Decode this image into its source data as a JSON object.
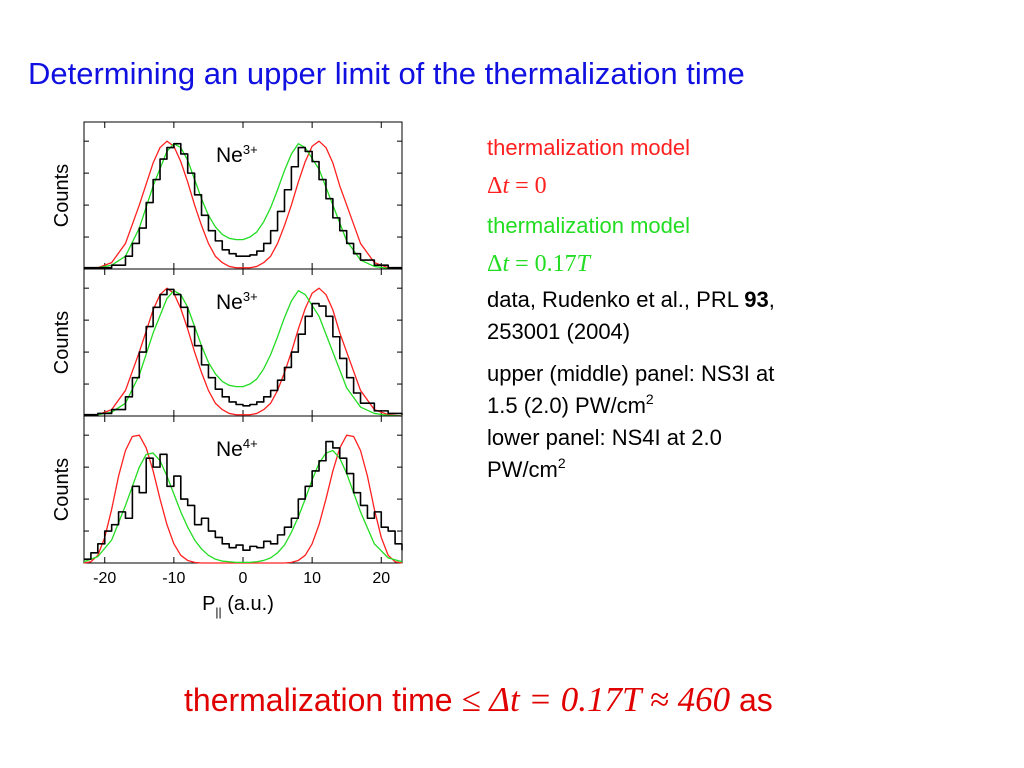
{
  "slide": {
    "title": "Determining an upper limit of the thermalization time"
  },
  "colors": {
    "title": "#1010e0",
    "model_dt0": "#ff2020",
    "model_dt017": "#22dd22",
    "data": "#000000"
  },
  "legend": {
    "model_dt0_label": "thermalization model",
    "model_dt0_math_symbol": "Δ",
    "model_dt0_math_var": "t",
    "model_dt0_math_rest": " = 0",
    "model_dt017_label": "thermalization model",
    "model_dt017_math_symbol": "Δ",
    "model_dt017_math_var": "t",
    "model_dt017_math_rest": " = 0.17",
    "model_dt017_math_T": "T",
    "data_line1_pre": "data, Rudenko et al., PRL ",
    "data_line1_bold": "93",
    "data_line1_post": ",",
    "data_line2": "253001 (2004)",
    "panels_upper_line1": "upper (middle) panel:  NS3I at",
    "panels_upper_line2": "1.5 (2.0) PW/cm",
    "panels_upper_sup": "2",
    "panels_lower_line1": "lower panel:   NS4I at 2.0",
    "panels_lower_line2": "PW/cm",
    "panels_lower_sup": "2"
  },
  "conclusion": {
    "text_pre": "thermalization time ",
    "math": "≤ Δt = 0.17T ≈ 460",
    "text_post": " as"
  },
  "chart_data": {
    "type": "line",
    "xlabel_main": "P",
    "xlabel_sub": "||",
    "xlabel_unit": " (a.u.)",
    "ylabel": "Counts",
    "xlim": [
      -23,
      23
    ],
    "ylim": [
      0,
      1.15
    ],
    "xticks": [
      -20,
      -10,
      0,
      10,
      20
    ],
    "xtick_labels": [
      "-20",
      "-10",
      "0",
      "10",
      "20"
    ],
    "panels": [
      {
        "ion": "Ne",
        "charge": "3+",
        "series": [
          {
            "color": "#ff2020",
            "x": [
              -23,
              -21,
              -19,
              -17,
              -15,
              -13,
              -12,
              -11,
              -10,
              -9,
              -8,
              -7,
              -6,
              -5,
              -4,
              -3,
              -2,
              -1,
              0,
              1,
              2,
              3,
              4,
              5,
              6,
              7,
              8,
              9,
              10,
              11,
              12,
              13,
              14,
              15,
              17,
              19,
              21,
              23
            ],
            "y": [
              0,
              0.01,
              0.05,
              0.2,
              0.5,
              0.83,
              0.95,
              1.0,
              0.96,
              0.84,
              0.68,
              0.5,
              0.34,
              0.2,
              0.1,
              0.05,
              0.02,
              0.01,
              0.01,
              0.01,
              0.02,
              0.05,
              0.1,
              0.2,
              0.34,
              0.5,
              0.68,
              0.84,
              0.96,
              1.0,
              0.95,
              0.83,
              0.65,
              0.5,
              0.2,
              0.05,
              0.01,
              0
            ]
          },
          {
            "color": "#22dd22",
            "x": [
              -23,
              -21,
              -19,
              -17,
              -15,
              -13,
              -11,
              -10,
              -9,
              -8,
              -7,
              -6,
              -5,
              -4,
              -3,
              -2,
              -1,
              0,
              1,
              2,
              3,
              4,
              5,
              6,
              7,
              8,
              9,
              11,
              13,
              15,
              17,
              19,
              21,
              23
            ],
            "y": [
              0,
              0.01,
              0.03,
              0.1,
              0.32,
              0.65,
              0.92,
              0.98,
              0.95,
              0.85,
              0.7,
              0.55,
              0.42,
              0.33,
              0.27,
              0.24,
              0.23,
              0.23,
              0.25,
              0.29,
              0.37,
              0.48,
              0.62,
              0.77,
              0.9,
              0.98,
              0.95,
              0.78,
              0.5,
              0.22,
              0.07,
              0.02,
              0.005,
              0
            ]
          },
          {
            "color": "#000000",
            "step": true,
            "x": [
              -23,
              -21,
              -19,
              -17,
              -16,
              -15,
              -14,
              -13,
              -12,
              -11,
              -10,
              -9,
              -8,
              -7,
              -6,
              -5,
              -4,
              -3,
              -2,
              -1,
              0,
              1,
              2,
              3,
              4,
              5,
              6,
              7,
              8,
              9,
              10,
              11,
              12,
              13,
              14,
              15,
              16,
              17,
              19,
              21,
              23
            ],
            "y": [
              0.01,
              0.01,
              0.03,
              0.1,
              0.2,
              0.32,
              0.52,
              0.7,
              0.86,
              0.95,
              0.98,
              0.9,
              0.75,
              0.58,
              0.42,
              0.3,
              0.22,
              0.15,
              0.12,
              0.1,
              0.1,
              0.11,
              0.14,
              0.2,
              0.3,
              0.45,
              0.62,
              0.8,
              0.95,
              0.92,
              0.84,
              0.7,
              0.55,
              0.4,
              0.3,
              0.2,
              0.12,
              0.07,
              0.03,
              0.01,
              0.01
            ]
          }
        ]
      },
      {
        "ion": "Ne",
        "charge": "3+",
        "series": [
          {
            "color": "#ff2020",
            "x": [
              -23,
              -21,
              -19,
              -17,
              -15,
              -13,
              -12,
              -11,
              -10,
              -9,
              -8,
              -7,
              -6,
              -5,
              -4,
              -3,
              -2,
              -1,
              0,
              1,
              2,
              3,
              4,
              5,
              6,
              7,
              8,
              9,
              10,
              11,
              12,
              13,
              14,
              15,
              17,
              19,
              21,
              23
            ],
            "y": [
              0,
              0.01,
              0.05,
              0.2,
              0.5,
              0.83,
              0.95,
              1.0,
              0.96,
              0.84,
              0.68,
              0.5,
              0.34,
              0.2,
              0.1,
              0.05,
              0.02,
              0.01,
              0.01,
              0.01,
              0.02,
              0.05,
              0.1,
              0.2,
              0.34,
              0.5,
              0.68,
              0.84,
              0.96,
              1.0,
              0.95,
              0.83,
              0.65,
              0.5,
              0.2,
              0.05,
              0.01,
              0
            ]
          },
          {
            "color": "#22dd22",
            "x": [
              -23,
              -21,
              -19,
              -17,
              -15,
              -13,
              -11,
              -10,
              -9,
              -8,
              -7,
              -6,
              -5,
              -4,
              -3,
              -2,
              -1,
              0,
              1,
              2,
              3,
              4,
              5,
              6,
              7,
              8,
              9,
              11,
              13,
              15,
              17,
              19,
              21,
              23
            ],
            "y": [
              0,
              0.01,
              0.03,
              0.1,
              0.32,
              0.65,
              0.92,
              0.98,
              0.95,
              0.85,
              0.7,
              0.55,
              0.42,
              0.33,
              0.27,
              0.24,
              0.23,
              0.23,
              0.25,
              0.29,
              0.37,
              0.48,
              0.62,
              0.77,
              0.9,
              0.98,
              0.95,
              0.78,
              0.5,
              0.22,
              0.07,
              0.02,
              0.005,
              0
            ]
          },
          {
            "color": "#000000",
            "step": true,
            "x": [
              -23,
              -21,
              -19,
              -17,
              -16,
              -15,
              -14,
              -13,
              -12,
              -11,
              -10,
              -9,
              -8,
              -7,
              -6,
              -5,
              -4,
              -3,
              -2,
              -1,
              0,
              1,
              2,
              3,
              4,
              5,
              6,
              7,
              8,
              9,
              10,
              11,
              12,
              13,
              14,
              15,
              16,
              17,
              19,
              21,
              23
            ],
            "y": [
              0.01,
              0.02,
              0.05,
              0.15,
              0.3,
              0.5,
              0.7,
              0.85,
              0.95,
              0.99,
              0.95,
              0.85,
              0.7,
              0.55,
              0.4,
              0.3,
              0.21,
              0.15,
              0.11,
              0.09,
              0.08,
              0.09,
              0.11,
              0.15,
              0.2,
              0.28,
              0.38,
              0.5,
              0.64,
              0.78,
              0.88,
              0.86,
              0.78,
              0.62,
              0.45,
              0.3,
              0.18,
              0.1,
              0.04,
              0.02,
              0.01
            ]
          }
        ]
      },
      {
        "ion": "Ne",
        "charge": "4+",
        "series": [
          {
            "color": "#ff2020",
            "x": [
              -23,
              -22,
              -21,
              -20,
              -19,
              -18,
              -17,
              -16,
              -15,
              -14,
              -13,
              -12,
              -11,
              -10,
              -9,
              -8,
              -7,
              -6,
              -5,
              -4,
              -3,
              0,
              3,
              4,
              5,
              6,
              7,
              8,
              9,
              10,
              11,
              12,
              13,
              14,
              15,
              16,
              17,
              18,
              19,
              20,
              21,
              22,
              23
            ],
            "y": [
              0,
              0.01,
              0.06,
              0.2,
              0.42,
              0.68,
              0.88,
              0.99,
              1.0,
              0.9,
              0.72,
              0.5,
              0.3,
              0.15,
              0.06,
              0.02,
              0.005,
              0,
              0,
              0,
              0,
              0,
              0,
              0,
              0,
              0,
              0.005,
              0.02,
              0.06,
              0.15,
              0.3,
              0.5,
              0.72,
              0.9,
              1.0,
              0.99,
              0.88,
              0.68,
              0.42,
              0.2,
              0.06,
              0.01,
              0
            ]
          },
          {
            "color": "#22dd22",
            "x": [
              -23,
              -21,
              -19,
              -17,
              -15,
              -14,
              -13,
              -12,
              -11,
              -10,
              -9,
              -8,
              -7,
              -6,
              -5,
              -4,
              -3,
              -2,
              -1,
              0,
              1,
              2,
              3,
              4,
              5,
              6,
              7,
              8,
              9,
              10,
              11,
              12,
              13,
              14,
              15,
              16,
              17,
              19,
              21,
              23
            ],
            "y": [
              0.01,
              0.05,
              0.18,
              0.45,
              0.75,
              0.85,
              0.86,
              0.8,
              0.68,
              0.54,
              0.4,
              0.28,
              0.18,
              0.11,
              0.06,
              0.03,
              0.015,
              0.01,
              0.005,
              0.005,
              0.005,
              0.01,
              0.02,
              0.04,
              0.08,
              0.14,
              0.24,
              0.36,
              0.5,
              0.65,
              0.78,
              0.86,
              0.88,
              0.82,
              0.7,
              0.55,
              0.4,
              0.15,
              0.04,
              0.01
            ]
          },
          {
            "color": "#000000",
            "step": true,
            "x": [
              -23,
              -22,
              -21,
              -20,
              -19,
              -18,
              -17,
              -16,
              -15,
              -14,
              -13,
              -12,
              -11,
              -10,
              -9,
              -8,
              -7,
              -6,
              -5,
              -4,
              -3,
              -2,
              -1,
              0,
              1,
              2,
              3,
              4,
              5,
              6,
              7,
              8,
              9,
              10,
              11,
              12,
              13,
              14,
              15,
              16,
              17,
              18,
              19,
              20,
              21,
              22,
              23
            ],
            "y": [
              0.03,
              0.08,
              0.15,
              0.25,
              0.3,
              0.4,
              0.35,
              0.6,
              0.55,
              0.82,
              0.75,
              0.85,
              0.6,
              0.68,
              0.5,
              0.45,
              0.3,
              0.35,
              0.25,
              0.2,
              0.15,
              0.12,
              0.14,
              0.1,
              0.13,
              0.12,
              0.17,
              0.15,
              0.22,
              0.28,
              0.35,
              0.5,
              0.6,
              0.72,
              0.8,
              0.95,
              0.9,
              0.82,
              0.7,
              0.55,
              0.45,
              0.35,
              0.4,
              0.28,
              0.25,
              0.15,
              0.1
            ]
          }
        ]
      }
    ]
  }
}
